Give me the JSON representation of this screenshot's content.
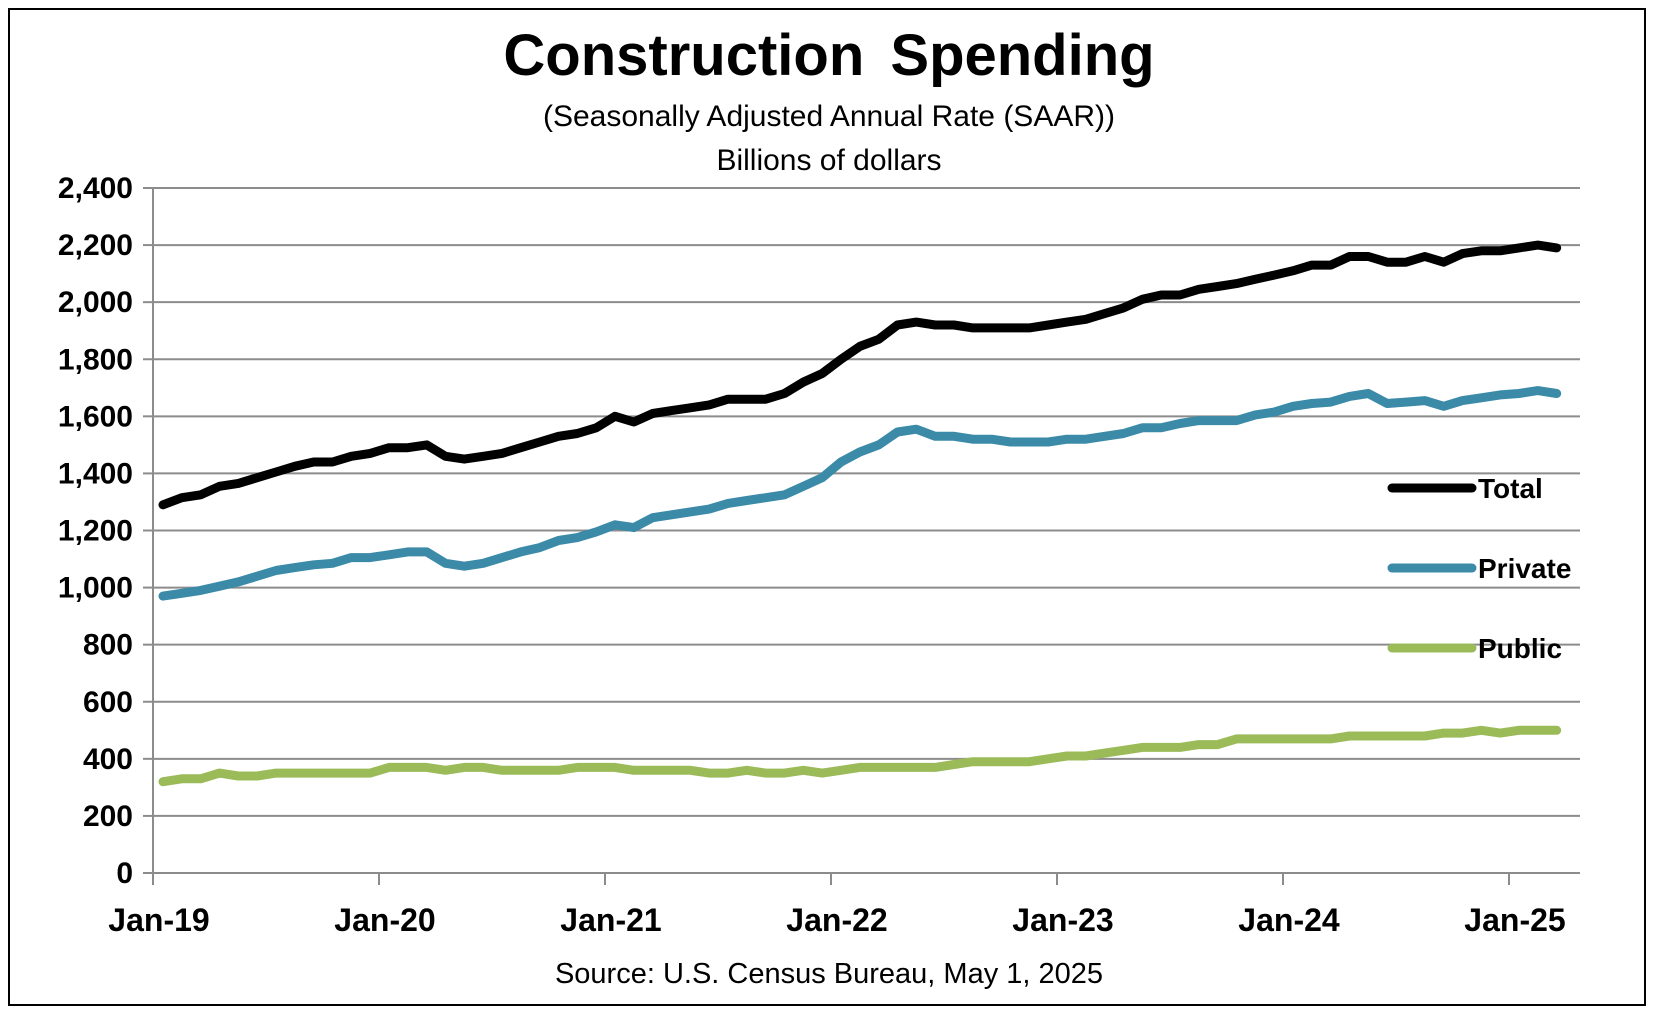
{
  "chart_data": {
    "type": "line",
    "title": "Construction  Spending",
    "subtitle": "(Seasonally Adjusted Annual Rate (SAAR))",
    "subtitle2": "Billions of dollars",
    "source": "Source: U.S. Census Bureau, May 1, 2025",
    "ylim": [
      0,
      2400
    ],
    "yticks": [
      0,
      200,
      400,
      600,
      800,
      1000,
      1200,
      1400,
      1600,
      1800,
      2000,
      2200,
      2400
    ],
    "ytick_labels": [
      "0",
      "200",
      "400",
      "600",
      "800",
      "1,000",
      "1,200",
      "1,400",
      "1,600",
      "1,800",
      "2,000",
      "2,200",
      "2,400"
    ],
    "xtick_labels": [
      "Jan-19",
      "Jan-20",
      "Jan-21",
      "Jan-22",
      "Jan-23",
      "Jan-24",
      "Jan-25"
    ],
    "x_start": "Jan-19",
    "x_end": "Mar-25",
    "grid": true,
    "legend_position": "right",
    "series": [
      {
        "name": "Total",
        "color": "#000000",
        "values": [
          1290,
          1315,
          1325,
          1355,
          1365,
          1385,
          1405,
          1425,
          1440,
          1440,
          1460,
          1470,
          1490,
          1490,
          1500,
          1460,
          1450,
          1460,
          1470,
          1490,
          1510,
          1530,
          1540,
          1560,
          1600,
          1580,
          1610,
          1620,
          1630,
          1640,
          1660,
          1660,
          1660,
          1680,
          1720,
          1750,
          1800,
          1845,
          1870,
          1920,
          1930,
          1920,
          1920,
          1910,
          1910,
          1910,
          1910,
          1920,
          1930,
          1940,
          1960,
          1980,
          2010,
          2025,
          2025,
          2045,
          2055,
          2065,
          2080,
          2095,
          2110,
          2130,
          2130,
          2160,
          2160,
          2140,
          2140,
          2160,
          2140,
          2170,
          2180,
          2180,
          2190,
          2200,
          2190
        ]
      },
      {
        "name": "Private",
        "color": "#3a8aa8",
        "values": [
          970,
          980,
          990,
          1005,
          1020,
          1040,
          1060,
          1070,
          1080,
          1085,
          1105,
          1105,
          1115,
          1125,
          1125,
          1085,
          1075,
          1085,
          1105,
          1125,
          1140,
          1165,
          1175,
          1195,
          1220,
          1210,
          1245,
          1255,
          1265,
          1275,
          1295,
          1305,
          1315,
          1325,
          1355,
          1385,
          1440,
          1475,
          1500,
          1545,
          1555,
          1530,
          1530,
          1520,
          1520,
          1510,
          1510,
          1510,
          1520,
          1520,
          1530,
          1540,
          1560,
          1560,
          1575,
          1585,
          1585,
          1585,
          1605,
          1615,
          1635,
          1645,
          1650,
          1670,
          1680,
          1645,
          1650,
          1655,
          1635,
          1655,
          1665,
          1675,
          1680,
          1690,
          1680
        ]
      },
      {
        "name": "Public",
        "color": "#9bbb59",
        "values": [
          320,
          330,
          330,
          350,
          340,
          340,
          350,
          350,
          350,
          350,
          350,
          350,
          370,
          370,
          370,
          360,
          370,
          370,
          360,
          360,
          360,
          360,
          370,
          370,
          370,
          360,
          360,
          360,
          360,
          350,
          350,
          360,
          350,
          350,
          360,
          350,
          360,
          370,
          370,
          370,
          370,
          370,
          380,
          390,
          390,
          390,
          390,
          400,
          410,
          410,
          420,
          430,
          440,
          440,
          440,
          450,
          450,
          470,
          470,
          470,
          470,
          470,
          470,
          480,
          480,
          480,
          480,
          480,
          490,
          490,
          500,
          490,
          500,
          500,
          500
        ]
      }
    ]
  }
}
